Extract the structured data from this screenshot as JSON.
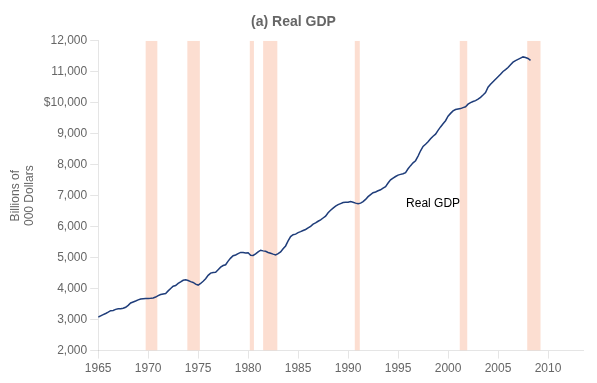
{
  "chart_data": {
    "type": "line",
    "title": "(a) Real GDP",
    "y_label": [
      "Billions of",
      "000 Dollars"
    ],
    "color": "#1f3d7a",
    "grid": false,
    "annotations": [
      {
        "text": "Real GDP",
        "x": 1995.8,
        "y": 6650
      }
    ],
    "recession_bands": {
      "color": "#f5a07a",
      "ranges": [
        [
          1969.75,
          1970.92
        ],
        [
          1973.92,
          1975.17
        ],
        [
          1980.17,
          1980.58
        ],
        [
          1981.5,
          1982.92
        ],
        [
          1990.67,
          1991.17
        ],
        [
          2001.17,
          2001.92
        ],
        [
          2007.92,
          2009.25
        ]
      ]
    },
    "xlim": [
      1965,
      2013.5
    ],
    "xticks": [
      1965,
      1970,
      1975,
      1980,
      1985,
      1990,
      1995,
      2000,
      2005,
      2010
    ],
    "ylim": [
      2000,
      12000
    ],
    "yticks": [
      {
        "value": 2000,
        "label": "2,000"
      },
      {
        "value": 3000,
        "label": "3,000"
      },
      {
        "value": 4000,
        "label": "4,000"
      },
      {
        "value": 5000,
        "label": "5,000"
      },
      {
        "value": 6000,
        "label": "6,000"
      },
      {
        "value": 7000,
        "label": "7,000"
      },
      {
        "value": 8000,
        "label": "8,000"
      },
      {
        "value": 9000,
        "label": "9,000"
      },
      {
        "value": 10000,
        "label": "$10,000"
      },
      {
        "value": 11000,
        "label": "11,000"
      },
      {
        "value": 12000,
        "label": "12,000"
      }
    ],
    "x": [
      1965.0,
      1965.25,
      1965.5,
      1965.75,
      1966.0,
      1966.25,
      1966.5,
      1966.75,
      1967.0,
      1967.25,
      1967.5,
      1967.75,
      1968.0,
      1968.25,
      1968.5,
      1968.75,
      1969.0,
      1969.25,
      1969.5,
      1969.75,
      1970.0,
      1970.25,
      1970.5,
      1970.75,
      1971.0,
      1971.25,
      1971.5,
      1971.75,
      1972.0,
      1972.25,
      1972.5,
      1972.75,
      1973.0,
      1973.25,
      1973.5,
      1973.75,
      1974.0,
      1974.25,
      1974.5,
      1974.75,
      1975.0,
      1975.25,
      1975.5,
      1975.75,
      1976.0,
      1976.25,
      1976.5,
      1976.75,
      1977.0,
      1977.25,
      1977.5,
      1977.75,
      1978.0,
      1978.25,
      1978.5,
      1978.75,
      1979.0,
      1979.25,
      1979.5,
      1979.75,
      1980.0,
      1980.25,
      1980.5,
      1980.75,
      1981.0,
      1981.25,
      1981.5,
      1981.75,
      1982.0,
      1982.25,
      1982.5,
      1982.75,
      1983.0,
      1983.25,
      1983.5,
      1983.75,
      1984.0,
      1984.25,
      1984.5,
      1984.75,
      1985.0,
      1985.25,
      1985.5,
      1985.75,
      1986.0,
      1986.25,
      1986.5,
      1986.75,
      1987.0,
      1987.25,
      1987.5,
      1987.75,
      1988.0,
      1988.25,
      1988.5,
      1988.75,
      1989.0,
      1989.25,
      1989.5,
      1989.75,
      1990.0,
      1990.25,
      1990.5,
      1990.75,
      1991.0,
      1991.25,
      1991.5,
      1991.75,
      1992.0,
      1992.25,
      1992.5,
      1992.75,
      1993.0,
      1993.25,
      1993.5,
      1993.75,
      1994.0,
      1994.25,
      1994.5,
      1994.75,
      1995.0,
      1995.25,
      1995.5,
      1995.75,
      1996.0,
      1996.25,
      1996.5,
      1996.75,
      1997.0,
      1997.25,
      1997.5,
      1997.75,
      1998.0,
      1998.25,
      1998.5,
      1998.75,
      1999.0,
      1999.25,
      1999.5,
      1999.75,
      2000.0,
      2000.25,
      2000.5,
      2000.75,
      2001.0,
      2001.25,
      2001.5,
      2001.75,
      2002.0,
      2002.25,
      2002.5,
      2002.75,
      2003.0,
      2003.25,
      2003.5,
      2003.75,
      2004.0,
      2004.25,
      2004.5,
      2004.75,
      2005.0,
      2005.25,
      2005.5,
      2005.75,
      2006.0,
      2006.25,
      2006.5,
      2006.75,
      2007.0,
      2007.25,
      2007.5,
      2007.75,
      2008.0,
      2008.25
    ],
    "values": [
      3083,
      3123,
      3162,
      3199,
      3239,
      3287,
      3296,
      3331,
      3353,
      3350,
      3365,
      3400,
      3461,
      3538,
      3570,
      3600,
      3637,
      3666,
      3674,
      3683,
      3680,
      3687,
      3700,
      3728,
      3773,
      3810,
      3830,
      3845,
      3928,
      4005,
      4076,
      4100,
      4167,
      4215,
      4270,
      4285,
      4264,
      4225,
      4200,
      4145,
      4116,
      4167,
      4239,
      4318,
      4430,
      4500,
      4523,
      4530,
      4612,
      4695,
      4745,
      4770,
      4888,
      4986,
      5063,
      5086,
      5130,
      5170,
      5165,
      5150,
      5160,
      5077,
      5070,
      5120,
      5185,
      5240,
      5219,
      5205,
      5168,
      5141,
      5114,
      5090,
      5132,
      5185,
      5290,
      5378,
      5540,
      5680,
      5740,
      5760,
      5810,
      5840,
      5878,
      5910,
      5960,
      6010,
      6080,
      6120,
      6175,
      6220,
      6280,
      6340,
      6450,
      6530,
      6600,
      6660,
      6710,
      6745,
      6780,
      6785,
      6790,
      6810,
      6790,
      6760,
      6740,
      6760,
      6810,
      6880,
      6970,
      7034,
      7095,
      7120,
      7159,
      7190,
      7245,
      7290,
      7410,
      7510,
      7570,
      7620,
      7665,
      7688,
      7710,
      7745,
      7870,
      7970,
      8060,
      8130,
      8280,
      8450,
      8590,
      8660,
      8740,
      8840,
      8920,
      8985,
      9110,
      9220,
      9320,
      9420,
      9565,
      9657,
      9735,
      9780,
      9797,
      9812,
      9842,
      9870,
      9954,
      10003,
      10040,
      10070,
      10120,
      10175,
      10250,
      10330,
      10500,
      10595,
      10680,
      10760,
      10840,
      10920,
      11010,
      11070,
      11140,
      11230,
      11310,
      11360,
      11400,
      11440,
      11480,
      11460,
      11430,
      11370
    ]
  }
}
